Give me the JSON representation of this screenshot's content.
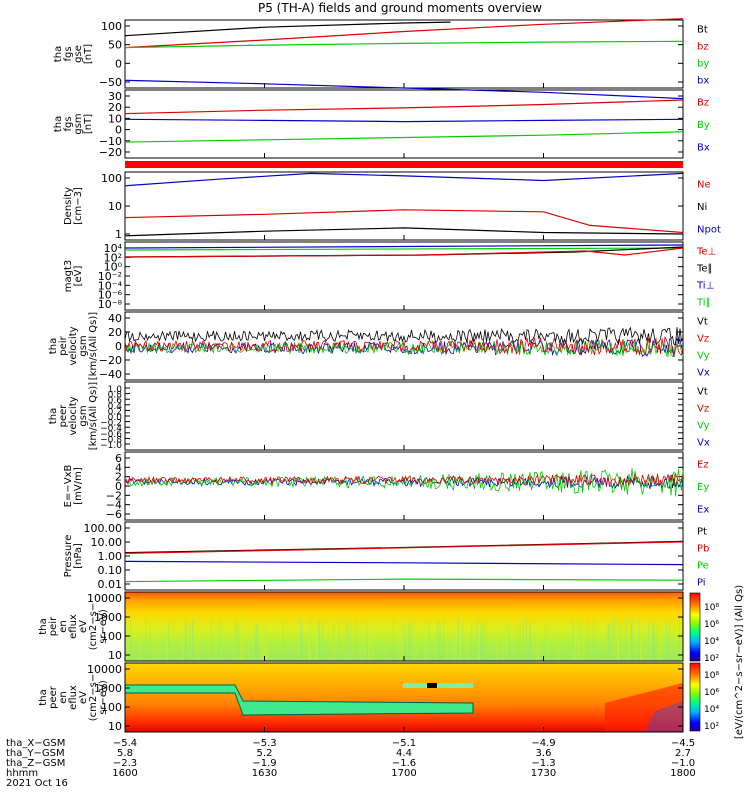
{
  "title": "P5 (TH-A) fields and ground moments overview",
  "colors": {
    "black": "#000000",
    "red": "#e00000",
    "green": "#00cc00",
    "blue": "#0000cc"
  },
  "panels": [
    {
      "id": "fgs-gse",
      "ylabel": [
        "tha",
        "fgs",
        "gse",
        "[nT]"
      ],
      "yticks": [
        "100",
        "50",
        "0",
        "−50"
      ],
      "legend": [
        {
          "text": "Bt",
          "color": "black"
        },
        {
          "text": "bz",
          "color": "red"
        },
        {
          "text": "by",
          "color": "green"
        },
        {
          "text": "bx",
          "color": "blue"
        }
      ]
    },
    {
      "id": "fgs-gsm",
      "ylabel": [
        "tha",
        "fgs",
        "gsm",
        "[nT]"
      ],
      "yticks": [
        "30",
        "20",
        "10",
        "0",
        "−10",
        "−20"
      ],
      "legend": [
        {
          "text": "Bz",
          "color": "red"
        },
        {
          "text": "By",
          "color": "green"
        },
        {
          "text": "Bx",
          "color": "blue"
        }
      ]
    },
    {
      "id": "density",
      "ylabel": [
        "Density",
        "[cm−3]"
      ],
      "yticks": [
        "100",
        "10",
        "1"
      ],
      "legend": [
        {
          "text": "Ne",
          "color": "red"
        },
        {
          "text": "Ni",
          "color": "black"
        },
        {
          "text": "Npot",
          "color": "blue"
        }
      ]
    },
    {
      "id": "temp",
      "ylabel": [
        "magt3",
        "[eV]"
      ],
      "yticks": [
        "10⁴",
        "10²",
        "10⁰",
        "10⁻²",
        "10⁻⁴",
        "10⁻⁶",
        "10⁻⁸"
      ],
      "legend": [
        {
          "text": "Te⊥",
          "color": "red"
        },
        {
          "text": "Te∥",
          "color": "black"
        },
        {
          "text": "Ti⊥",
          "color": "blue"
        },
        {
          "text": "Ti∥",
          "color": "green"
        }
      ]
    },
    {
      "id": "peir-vel",
      "ylabel": [
        "tha",
        "peir",
        "velocity",
        "gsm",
        "[km/s(All Qs)]"
      ],
      "yticks": [
        "40",
        "20",
        "0",
        "−20",
        "−40"
      ],
      "legend": [
        {
          "text": "Vt",
          "color": "black"
        },
        {
          "text": "Vz",
          "color": "red"
        },
        {
          "text": "Vy",
          "color": "green"
        },
        {
          "text": "Vx",
          "color": "blue"
        }
      ]
    },
    {
      "id": "peer-vel",
      "ylabel": [
        "tha",
        "peer",
        "velocity",
        "gsm",
        "[km/s(All Qs)]"
      ],
      "yticks": [
        "1.0",
        "0.8",
        "0.6",
        "0.4",
        "0.2",
        "0.0",
        "−0.2",
        "−0.4",
        "−0.6",
        "−0.8",
        "−1.0"
      ],
      "legend": [
        {
          "text": "Vt",
          "color": "black"
        },
        {
          "text": "Vz",
          "color": "red"
        },
        {
          "text": "Vy",
          "color": "green"
        },
        {
          "text": "Vx",
          "color": "blue"
        }
      ]
    },
    {
      "id": "efield",
      "ylabel": [
        "E=−VxB",
        "[mV/m]"
      ],
      "yticks": [
        "6",
        "4",
        "2",
        "0",
        "−2",
        "−4",
        "−6"
      ],
      "legend": [
        {
          "text": "Ez",
          "color": "red"
        },
        {
          "text": "Ey",
          "color": "green"
        },
        {
          "text": "Ex",
          "color": "blue"
        }
      ]
    },
    {
      "id": "pressure",
      "ylabel": [
        "Pressure",
        "[nPa]"
      ],
      "yticks": [
        "100.00",
        "10.00",
        "1.00",
        "0.10",
        "0.01"
      ],
      "legend": [
        {
          "text": "Pt",
          "color": "black"
        },
        {
          "text": "Pb",
          "color": "red"
        },
        {
          "text": "Pe",
          "color": "green"
        },
        {
          "text": "Pi",
          "color": "blue"
        }
      ]
    },
    {
      "id": "peir-spec",
      "ylabel": [
        "tha",
        "peir",
        "en",
        "eflux",
        "eV",
        "(cm2−s−",
        "sr−eV)"
      ],
      "yticks": [
        "10000",
        "1000",
        "100",
        "10"
      ]
    },
    {
      "id": "peer-spec",
      "ylabel": [
        "tha",
        "peer",
        "en",
        "eflux",
        "eV",
        "(cm2−s−",
        "sr−eV)"
      ],
      "yticks": [
        "10000",
        "1000",
        "100",
        "10"
      ]
    }
  ],
  "colorbar": {
    "label": "[eV/(cm^2−s−sr−eV)] (All Qs)",
    "ticks_top": [
      "10⁸",
      "10⁶",
      "10⁴",
      "10²"
    ],
    "ticks_bottom": [
      "10⁸",
      "10⁶",
      "10⁴",
      "10²"
    ]
  },
  "xaxis": {
    "row_labels": [
      "tha_X−GSM",
      "tha_Y−GSM",
      "tha_Z−GSM",
      "hhmm",
      "2021 Oct 16"
    ],
    "columns": [
      {
        "x": "−5.4",
        "y": "5.8",
        "z": "−2.3",
        "hhmm": "1600"
      },
      {
        "x": "−5.3",
        "y": "5.2",
        "z": "−1.9",
        "hhmm": "1630"
      },
      {
        "x": "−5.1",
        "y": "4.4",
        "z": "−1.6",
        "hhmm": "1700"
      },
      {
        "x": "−4.9",
        "y": "3.6",
        "z": "−1.3",
        "hhmm": "1730"
      },
      {
        "x": "−4.5",
        "y": "2.7",
        "z": "−1.0",
        "hhmm": "1800"
      }
    ]
  },
  "chart_data": {
    "type": "line",
    "time_start": "2021-10-16 16:00",
    "time_end": "2021-10-16 18:00",
    "series": [
      {
        "panel": "fgs-gse",
        "name": "Bt",
        "x": [
          "16:00",
          "16:30",
          "17:00",
          "17:10"
        ],
        "values": [
          68,
          88,
          98,
          100
        ]
      },
      {
        "panel": "fgs-gse",
        "name": "bz",
        "x": [
          "16:00",
          "16:30",
          "17:00",
          "17:30",
          "18:00"
        ],
        "values": [
          40,
          58,
          78,
          95,
          108
        ]
      },
      {
        "panel": "fgs-gse",
        "name": "by",
        "x": [
          "16:00",
          "16:30",
          "17:00",
          "17:30",
          "18:00"
        ],
        "values": [
          40,
          46,
          50,
          53,
          55
        ]
      },
      {
        "panel": "fgs-gse",
        "name": "bx",
        "x": [
          "16:00",
          "16:30",
          "17:00",
          "17:30",
          "18:00"
        ],
        "values": [
          -37,
          -45,
          -55,
          -65,
          -80
        ]
      },
      {
        "panel": "fgs-gsm",
        "name": "Bz",
        "x": [
          "16:00",
          "16:30",
          "17:00",
          "17:30",
          "18:00"
        ],
        "values": [
          13,
          16,
          18,
          21,
          25
        ]
      },
      {
        "panel": "fgs-gsm",
        "name": "By",
        "x": [
          "16:00",
          "16:30",
          "17:00",
          "17:30",
          "18:00"
        ],
        "values": [
          -12,
          -10,
          -8,
          -6,
          -3
        ]
      },
      {
        "panel": "fgs-gsm",
        "name": "Bx",
        "x": [
          "16:00",
          "16:30",
          "17:00",
          "17:30",
          "18:00"
        ],
        "values": [
          8,
          7,
          6,
          7,
          8
        ]
      },
      {
        "panel": "density",
        "name": "Npot",
        "x": [
          "16:00",
          "16:20",
          "16:40",
          "17:00",
          "17:30",
          "18:00"
        ],
        "values": [
          50,
          90,
          150,
          120,
          80,
          150
        ]
      },
      {
        "panel": "density",
        "name": "Ne",
        "x": [
          "16:00",
          "16:30",
          "17:00",
          "17:30",
          "17:40",
          "18:00"
        ],
        "values": [
          3,
          4,
          6,
          5,
          1.5,
          0.8
        ]
      },
      {
        "panel": "density",
        "name": "Ni",
        "x": [
          "16:00",
          "16:30",
          "17:00",
          "17:30",
          "18:00"
        ],
        "values": [
          0.6,
          0.9,
          1.2,
          0.8,
          0.7
        ]
      },
      {
        "panel": "pressure",
        "name": "Pt",
        "x": [
          "16:00",
          "17:00",
          "18:00"
        ],
        "values": [
          2.0,
          4.5,
          12
        ]
      },
      {
        "panel": "pressure",
        "name": "Pb",
        "x": [
          "16:00",
          "17:00",
          "18:00"
        ],
        "values": [
          1.8,
          4.3,
          11
        ]
      },
      {
        "panel": "pressure",
        "name": "Pi",
        "x": [
          "16:00",
          "17:00",
          "18:00"
        ],
        "values": [
          0.5,
          0.4,
          0.3
        ]
      },
      {
        "panel": "pressure",
        "name": "Pe",
        "x": [
          "16:00",
          "17:00",
          "18:00"
        ],
        "values": [
          0.02,
          0.03,
          0.025
        ]
      }
    ]
  }
}
